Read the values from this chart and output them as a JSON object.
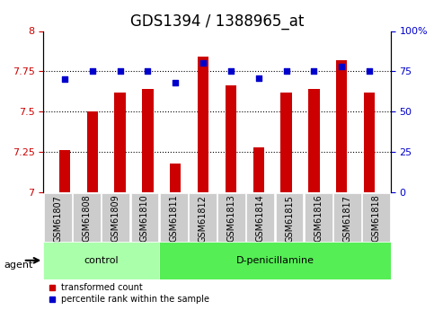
{
  "title": "GDS1394 / 1388965_at",
  "samples": [
    "GSM61807",
    "GSM61808",
    "GSM61809",
    "GSM61810",
    "GSM61811",
    "GSM61812",
    "GSM61813",
    "GSM61814",
    "GSM61815",
    "GSM61816",
    "GSM61817",
    "GSM61818"
  ],
  "transformed_count": [
    7.26,
    7.5,
    7.62,
    7.64,
    7.18,
    7.84,
    7.66,
    7.28,
    7.62,
    7.64,
    7.82,
    7.62
  ],
  "percentile_rank": [
    70,
    75,
    75,
    75,
    68,
    80,
    75,
    71,
    75,
    75,
    78,
    75
  ],
  "bar_color": "#cc0000",
  "dot_color": "#0000cc",
  "ylim_left": [
    7.0,
    8.0
  ],
  "ylim_right": [
    0,
    100
  ],
  "yticks_left": [
    7.0,
    7.25,
    7.5,
    7.75,
    8.0
  ],
  "yticks_right": [
    0,
    25,
    50,
    75,
    100
  ],
  "ytick_labels_left": [
    "7",
    "7.25",
    "7.5",
    "7.75",
    "8"
  ],
  "ytick_labels_right": [
    "0",
    "25",
    "50",
    "75",
    "100%"
  ],
  "hlines": [
    7.25,
    7.5,
    7.75
  ],
  "control_samples": 4,
  "group_labels": [
    "control",
    "D-penicillamine"
  ],
  "group_colors": [
    "#aaffaa",
    "#55ee55"
  ],
  "agent_label": "agent",
  "legend_items": [
    {
      "label": "transformed count",
      "color": "#cc0000",
      "marker": "s"
    },
    {
      "label": "percentile rank within the sample",
      "color": "#0000cc",
      "marker": "s"
    }
  ],
  "bar_width": 0.4,
  "background_color": "#ffffff",
  "plot_bg_color": "#ffffff",
  "tick_bg_color": "#cccccc",
  "title_fontsize": 12,
  "axis_fontsize": 9,
  "tick_fontsize": 8
}
